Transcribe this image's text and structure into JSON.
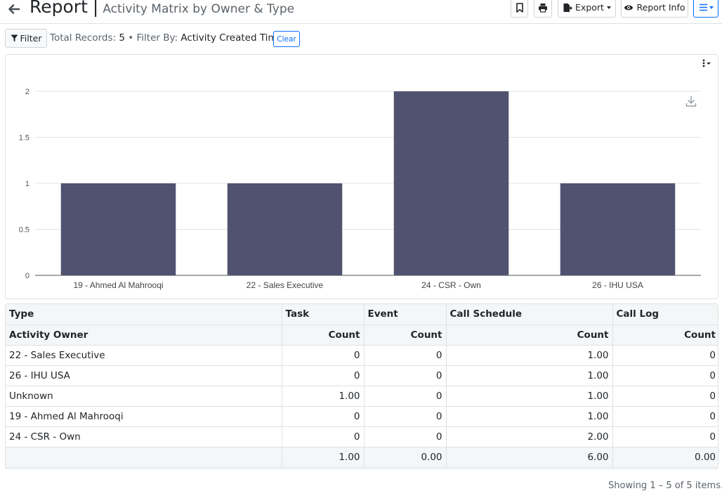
{
  "header": {
    "title": "Report",
    "separator": "|",
    "subtitle": "Activity Matrix by Owner & Type",
    "export_label": "Export",
    "report_info_label": "Report Info",
    "icons": [
      "back-arrow-icon",
      "bookmark-icon",
      "print-icon",
      "export-file-icon",
      "eye-icon",
      "hamburger-menu-icon"
    ]
  },
  "filter_bar": {
    "filter_label": "Filter",
    "total_label": "Total Records:",
    "total_value": "5",
    "bullet": "•",
    "filter_by_label": "Filter By:",
    "filter_by_value": "Activity Created Time",
    "clear_label": "Clear"
  },
  "chart_data": {
    "type": "bar",
    "categories": [
      "19 - Ahmed Al Mahrooqi",
      "22 - Sales Executive",
      "24 - CSR - Own",
      "26 - IHU USA"
    ],
    "values": [
      1,
      1,
      2,
      1
    ],
    "y_ticks": [
      "0",
      "0.5",
      "1",
      "1.5",
      "2"
    ],
    "ylim": [
      0,
      2
    ],
    "grid": true,
    "bar_color": "#50526f",
    "title": "",
    "xlabel": "",
    "ylabel": ""
  },
  "table": {
    "header_row1": [
      "Type",
      "Task",
      "Event",
      "Call Schedule",
      "Call Log"
    ],
    "header_row2": [
      "Activity Owner",
      "Count",
      "Count",
      "Count",
      "Count"
    ],
    "rows": [
      [
        "22 - Sales Executive",
        "0",
        "0",
        "1.00",
        "0"
      ],
      [
        "26 - IHU USA",
        "0",
        "0",
        "1.00",
        "0"
      ],
      [
        "Unknown",
        "1.00",
        "0",
        "1.00",
        "0"
      ],
      [
        "19 - Ahmed Al Mahrooqi",
        "0",
        "0",
        "1.00",
        "0"
      ],
      [
        "24 - CSR - Own",
        "0",
        "0",
        "2.00",
        "0"
      ]
    ],
    "totals": [
      "",
      "1.00",
      "0.00",
      "6.00",
      "0.00"
    ]
  },
  "pager": {
    "info": "Showing 1 – 5 of 5 items."
  }
}
